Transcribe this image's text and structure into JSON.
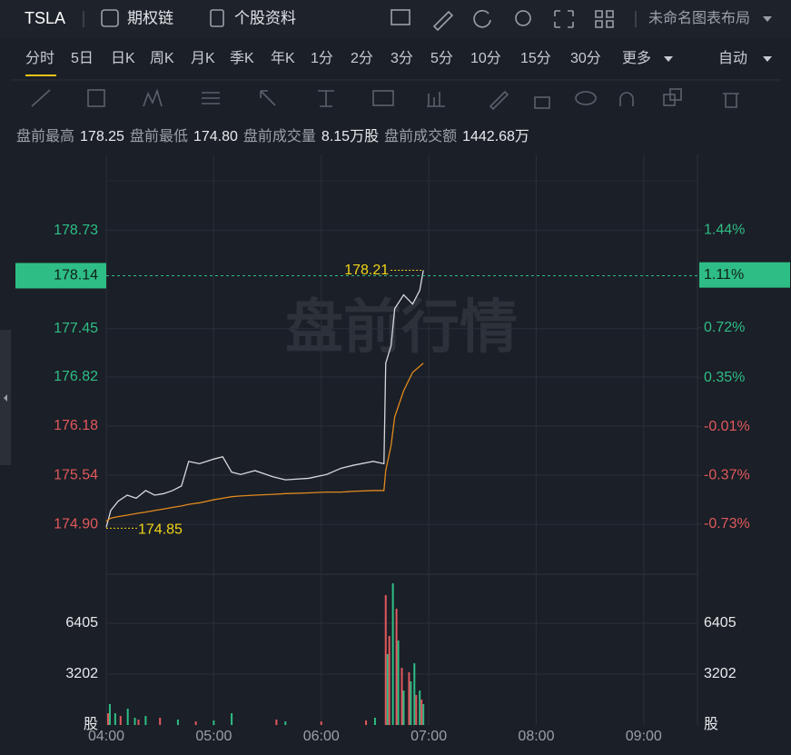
{
  "header": {
    "symbol": "TSLA",
    "links": [
      "期权链",
      "个股资料"
    ],
    "layout": "未命名图表布局"
  },
  "tabs": {
    "items": [
      "分时",
      "5日",
      "日K",
      "周K",
      "月K",
      "季K",
      "年K",
      "1分",
      "2分",
      "3分",
      "5分",
      "10分",
      "15分",
      "30分",
      "更多"
    ],
    "active": 0,
    "auto": "自动"
  },
  "stats": [
    {
      "label": "盘前最高",
      "value": "178.25"
    },
    {
      "label": "盘前最低",
      "value": "174.80"
    },
    {
      "label": "盘前成交量",
      "value": "8.15万股"
    },
    {
      "label": "盘前成交额",
      "value": "1442.68万"
    }
  ],
  "chart_data": {
    "type": "line",
    "watermark": "盘前行情",
    "xlim": [
      0,
      330
    ],
    "xticks": [
      {
        "value": 0,
        "label": "04:00"
      },
      {
        "value": 60,
        "label": "05:00"
      },
      {
        "value": 120,
        "label": "06:00"
      },
      {
        "value": 180,
        "label": "07:00"
      },
      {
        "value": 240,
        "label": "08:00"
      },
      {
        "value": 300,
        "label": "09:00"
      }
    ],
    "ylim": [
      174.25,
      179.72
    ],
    "yticks": [
      178.73,
      177.45,
      176.82,
      176.18,
      175.54,
      {
        "value": 174.9,
        "label": "174.90"
      }
    ],
    "y2lim": [
      -1.1,
      2.0
    ],
    "y2ticks": [
      {
        "value": 1.44,
        "label": "1.44%"
      },
      {
        "value": 0.72,
        "label": "0.72%"
      },
      {
        "value": 0.35,
        "label": "0.35%"
      },
      {
        "value": -0.01,
        "label": "-0.01%"
      },
      {
        "value": -0.37,
        "label": "-0.37%"
      },
      {
        "value": -0.73,
        "label": "-0.73%"
      }
    ],
    "grid": true,
    "up_color": "#2ebd85",
    "down_color": "#e0595c",
    "last_price": 178.14,
    "last_pct": {
      "value": 1.11,
      "label": "1.11%"
    },
    "high_mark": {
      "value": 178.21,
      "x": 177
    },
    "low_mark": {
      "value": 174.85,
      "x": 0
    },
    "x": [
      0,
      2.5,
      6.6,
      11.7,
      16.7,
      22,
      27,
      32,
      37,
      42,
      46,
      52,
      60,
      65,
      70,
      75,
      83,
      93,
      100,
      113,
      123,
      131,
      138,
      149,
      155,
      156,
      159,
      161,
      166,
      171,
      175,
      177
    ],
    "series": [
      {
        "color": "#d6d8dc",
        "values": [
          174.86,
          175.08,
          175.2,
          175.28,
          175.24,
          175.34,
          175.28,
          175.3,
          175.34,
          175.4,
          175.72,
          175.69,
          175.75,
          175.78,
          175.58,
          175.55,
          175.6,
          175.52,
          175.48,
          175.5,
          175.55,
          175.63,
          175.67,
          175.72,
          175.69,
          177.0,
          177.23,
          177.71,
          177.89,
          177.77,
          177.95,
          178.21
        ]
      },
      {
        "color": "#e08a1e",
        "values": [
          174.94,
          174.98,
          175.0,
          175.02,
          175.04,
          175.06,
          175.08,
          175.1,
          175.12,
          175.14,
          175.16,
          175.18,
          175.22,
          175.24,
          175.26,
          175.27,
          175.28,
          175.29,
          175.3,
          175.31,
          175.32,
          175.32,
          175.33,
          175.34,
          175.34,
          175.6,
          175.93,
          176.3,
          176.64,
          176.88,
          176.96,
          177.0
        ]
      }
    ],
    "volume": {
      "ylim": [
        0,
        9495
      ],
      "yticks": [
        3202,
        6405
      ],
      "unit": "股",
      "up": {
        "color": "#2ebd85",
        "x": [
          2,
          5,
          12,
          16,
          22,
          40,
          60,
          70,
          100,
          150,
          157,
          160,
          163,
          166,
          170,
          172,
          175,
          177
        ],
        "values": [
          1316,
          744,
          1030,
          458,
          572,
          343,
          286,
          744,
          229,
          458,
          4460,
          8920,
          5320,
          2170,
          2750,
          3890,
          2170,
          1316
        ]
      },
      "down": {
        "color": "#e0595c",
        "x": [
          1,
          8,
          18,
          30,
          50,
          95,
          120,
          145,
          156,
          158,
          162,
          165,
          169,
          173,
          176
        ],
        "values": [
          744,
          572,
          343,
          458,
          229,
          343,
          229,
          286,
          8180,
          5605,
          7320,
          3600,
          3320,
          1890,
          1600
        ]
      }
    }
  }
}
